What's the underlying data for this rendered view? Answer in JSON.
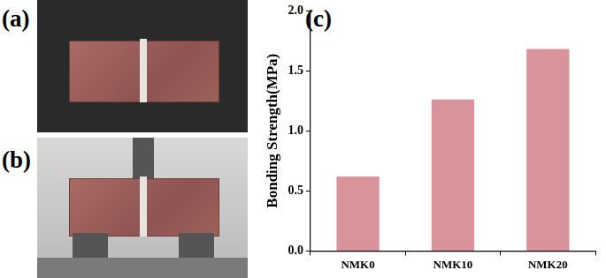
{
  "panel_labels": [
    "(a)",
    "(b)",
    "(c)"
  ],
  "chart_data": {
    "type": "bar",
    "y_label": "Bonding Strength(MPa)",
    "categories": [
      "NMK0",
      "NMK10",
      "NMK20"
    ],
    "values": [
      0.62,
      1.26,
      1.68
    ],
    "color": "#d9939a",
    "ylim": [
      0,
      2
    ],
    "yticks": [
      {
        "value": 0,
        "label": "0.0"
      },
      0.5,
      {
        "value": 1,
        "label": "1.0"
      },
      1.5,
      {
        "value": 2,
        "label": "2.0"
      }
    ],
    "grid": false
  }
}
